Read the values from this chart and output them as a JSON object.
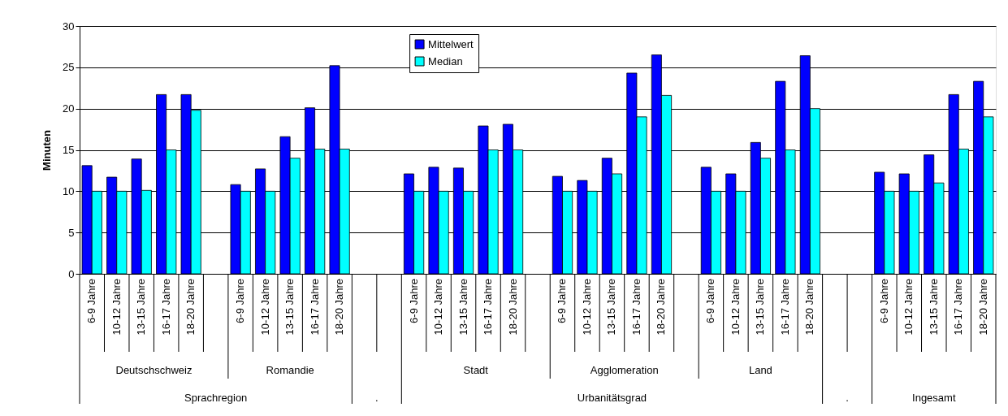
{
  "chart_data": {
    "type": "bar",
    "ylabel": "Minuten",
    "categories": [
      "6-9 Jahre",
      "10-12 Jahre",
      "13-15 Jahre",
      "16-17 Jahre",
      "18-20 Jahre",
      null,
      "6-9 Jahre",
      "10-12 Jahre",
      "13-15 Jahre",
      "16-17 Jahre",
      "18-20 Jahre",
      null,
      null,
      "6-9 Jahre",
      "10-12 Jahre",
      "13-15 Jahre",
      "16-17 Jahre",
      "18-20 Jahre",
      null,
      "6-9 Jahre",
      "10-12 Jahre",
      "13-15 Jahre",
      "16-17 Jahre",
      "18-20 Jahre",
      null,
      "6-9 Jahre",
      "10-12 Jahre",
      "13-15 Jahre",
      "16-17 Jahre",
      "18-20 Jahre",
      null,
      null,
      "6-9 Jahre",
      "10-12 Jahre",
      "13-15 Jahre",
      "16-17 Jahre",
      "18-20 Jahre"
    ],
    "series": [
      {
        "name": "Mittelwert",
        "color": "#0000ff",
        "values": [
          13.1,
          11.7,
          13.9,
          21.7,
          21.7,
          null,
          10.8,
          12.7,
          16.6,
          20.1,
          25.2,
          null,
          null,
          12.1,
          12.9,
          12.8,
          17.9,
          18.1,
          null,
          11.8,
          11.3,
          14.0,
          24.3,
          26.5,
          null,
          12.9,
          12.1,
          15.9,
          23.3,
          26.4,
          null,
          null,
          12.3,
          12.1,
          14.4,
          21.7,
          23.3
        ]
      },
      {
        "name": "Median",
        "color": "#00ffff",
        "values": [
          10,
          10,
          10.1,
          15,
          19.8,
          null,
          10,
          10,
          14,
          15.1,
          15.1,
          null,
          null,
          10,
          10,
          10,
          15,
          15,
          null,
          10,
          10,
          12.1,
          19.0,
          21.6,
          null,
          10,
          10,
          14,
          15,
          20,
          null,
          null,
          10,
          10,
          11,
          15.1,
          19.0
        ]
      }
    ],
    "annotations": [
      "Deutschschweiz",
      "Romandie",
      "Stadt",
      "Agglomeration",
      "Land",
      "Sprachregion",
      ".",
      "Urbanitätsgrad",
      ".",
      "Ingesamt"
    ],
    "ylim": [
      0,
      30
    ],
    "yticks": [
      0,
      5,
      10,
      15,
      20,
      25,
      30
    ],
    "grid": "y",
    "legend": "top"
  }
}
